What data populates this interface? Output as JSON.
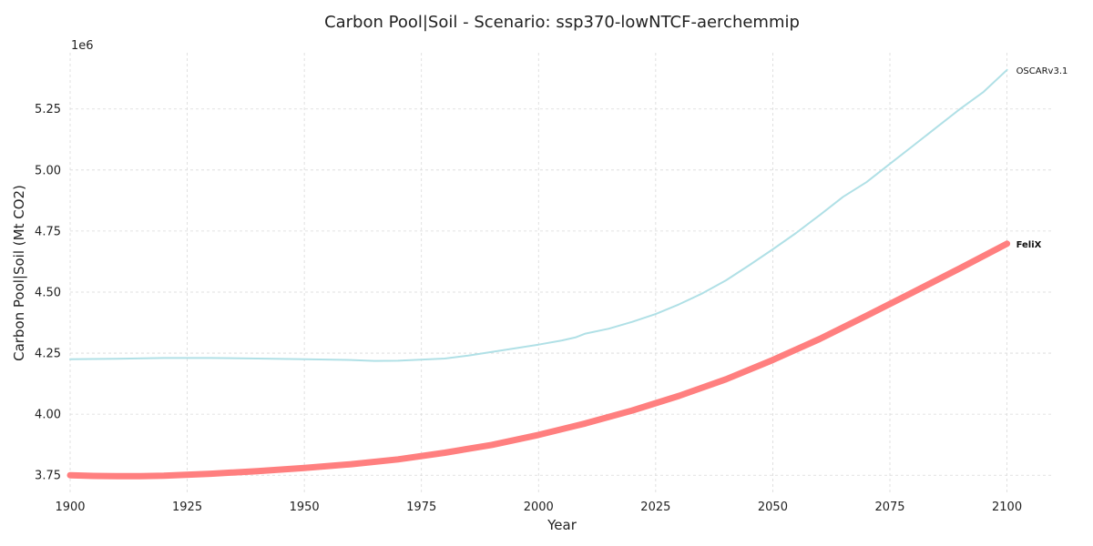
{
  "chart_data": {
    "type": "line",
    "title": "Carbon Pool|Soil - Scenario: ssp370-lowNTCF-aerchemmip",
    "xlabel": "Year",
    "ylabel": "Carbon Pool|Soil (Mt CO2)",
    "y_scale_label": "1e6",
    "xlim": [
      1900,
      2110
    ],
    "ylim": [
      3680000,
      5480000
    ],
    "x_ticks": [
      1900,
      1925,
      1950,
      1975,
      2000,
      2025,
      2050,
      2075,
      2100
    ],
    "x_tick_labels": [
      "1900",
      "1925",
      "1950",
      "1975",
      "2000",
      "2025",
      "2050",
      "2075",
      "2100"
    ],
    "y_ticks": [
      3750000,
      4000000,
      4250000,
      4500000,
      4750000,
      5000000,
      5250000
    ],
    "y_tick_labels": [
      "3.75",
      "4.00",
      "4.25",
      "4.50",
      "4.75",
      "5.00",
      "5.25"
    ],
    "grid": true,
    "legend": "end-of-line labels",
    "series": [
      {
        "name": "OSCARv3.1",
        "color": "#b0e0e6",
        "label_bold": false,
        "x": [
          1900,
          1910,
          1920,
          1930,
          1940,
          1950,
          1960,
          1965,
          1970,
          1980,
          1985,
          1990,
          1995,
          2000,
          2005,
          2008,
          2010,
          2015,
          2020,
          2025,
          2030,
          2035,
          2040,
          2045,
          2050,
          2055,
          2060,
          2065,
          2070,
          2075,
          2080,
          2085,
          2090,
          2095,
          2100
        ],
        "values": [
          4225000,
          4227000,
          4230000,
          4230000,
          4228000,
          4225000,
          4222000,
          4218000,
          4219000,
          4228000,
          4240000,
          4255000,
          4270000,
          4285000,
          4302000,
          4315000,
          4330000,
          4350000,
          4378000,
          4410000,
          4450000,
          4495000,
          4548000,
          4610000,
          4675000,
          4742000,
          4815000,
          4890000,
          4950000,
          5025000,
          5100000,
          5175000,
          5250000,
          5320000,
          5410000
        ]
      },
      {
        "name": "FeliX",
        "color": "#ff7f7f",
        "label_bold": true,
        "x": [
          1900,
          1905,
          1910,
          1915,
          1920,
          1930,
          1940,
          1950,
          1960,
          1970,
          1980,
          1990,
          2000,
          2010,
          2020,
          2030,
          2040,
          2050,
          2060,
          2070,
          2080,
          2090,
          2100
        ],
        "values": [
          3750000,
          3747000,
          3746000,
          3746000,
          3748000,
          3756000,
          3767000,
          3780000,
          3795000,
          3815000,
          3842000,
          3874000,
          3915000,
          3962000,
          4015000,
          4075000,
          4143000,
          4222000,
          4308000,
          4403000,
          4500000,
          4598000,
          4698000
        ]
      }
    ]
  }
}
